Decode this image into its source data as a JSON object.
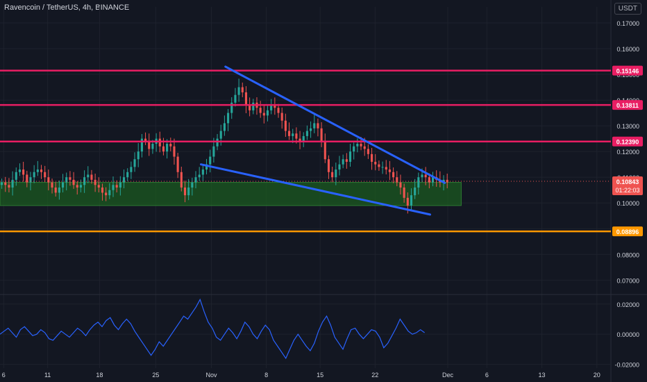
{
  "header": {
    "symbol_title": "Ravencoin / TetherUS, 4h, BINANCE"
  },
  "currency_button": "USDT",
  "colors": {
    "background": "#131722",
    "grid": "#1e222d",
    "axis_text": "#d1d4dc",
    "candle_up": "#26a69a",
    "candle_down": "#ef5350",
    "magenta_line": "#e91e63",
    "orange_line": "#ff9800",
    "trend_line": "#2962ff",
    "zone_fill": "#1b5e20",
    "oscillator": "#2962ff"
  },
  "chart_data": [
    {
      "type": "candlestick",
      "title": "Ravencoin / TetherUS, 4h, BINANCE",
      "y_axis_ticks": [
        "0.17000",
        "0.16000",
        "0.15000",
        "0.14000",
        "0.13000",
        "0.12000",
        "0.11000",
        "0.10000",
        "0.09000",
        "0.08000",
        "0.07000"
      ],
      "ylim": [
        0.0655,
        0.1735
      ],
      "x_axis_ticks": [
        "6",
        "11",
        "18",
        "25",
        "Nov",
        "8",
        "15",
        "22",
        "Dec",
        "6",
        "13",
        "20"
      ],
      "horizontal_levels": [
        {
          "value": 0.15146,
          "label": "0.15146",
          "color": "#e91e63"
        },
        {
          "value": 0.13811,
          "label": "0.13811",
          "color": "#e91e63"
        },
        {
          "value": 0.1239,
          "label": "0.12390",
          "color": "#e91e63"
        },
        {
          "value": 0.08896,
          "label": "0.08896",
          "color": "#ff9800"
        }
      ],
      "current_price": {
        "value": 0.10843,
        "label": "0.10843",
        "countdown": "01:22:03"
      },
      "support_zone": {
        "top": 0.108,
        "bottom": 0.099,
        "start_x": 0,
        "end_x": 0.755
      },
      "trend_lines": [
        {
          "name": "upper",
          "from": [
            0.369,
            0.153
          ],
          "to": [
            0.728,
            0.1078
          ]
        },
        {
          "name": "lower",
          "from": [
            0.329,
            0.115
          ],
          "to": [
            0.704,
            0.0955
          ]
        }
      ],
      "candles_close": [
        0.108,
        0.107,
        0.106,
        0.109,
        0.112,
        0.113,
        0.111,
        0.108,
        0.11,
        0.112,
        0.113,
        0.112,
        0.11,
        0.108,
        0.106,
        0.104,
        0.106,
        0.108,
        0.11,
        0.109,
        0.107,
        0.106,
        0.107,
        0.11,
        0.111,
        0.109,
        0.107,
        0.106,
        0.104,
        0.103,
        0.105,
        0.107,
        0.106,
        0.108,
        0.11,
        0.112,
        0.114,
        0.117,
        0.12,
        0.125,
        0.124,
        0.121,
        0.123,
        0.125,
        0.122,
        0.12,
        0.123,
        0.122,
        0.118,
        0.112,
        0.106,
        0.103,
        0.106,
        0.108,
        0.11,
        0.111,
        0.113,
        0.115,
        0.118,
        0.122,
        0.125,
        0.128,
        0.131,
        0.135,
        0.139,
        0.142,
        0.145,
        0.143,
        0.138,
        0.136,
        0.139,
        0.137,
        0.135,
        0.134,
        0.136,
        0.138,
        0.137,
        0.135,
        0.132,
        0.128,
        0.126,
        0.127,
        0.125,
        0.124,
        0.126,
        0.128,
        0.129,
        0.131,
        0.129,
        0.124,
        0.117,
        0.112,
        0.11,
        0.113,
        0.115,
        0.117,
        0.116,
        0.12,
        0.122,
        0.123,
        0.122,
        0.121,
        0.119,
        0.116,
        0.115,
        0.114,
        0.114,
        0.113,
        0.112,
        0.11,
        0.108,
        0.106,
        0.102,
        0.099,
        0.103,
        0.106,
        0.11,
        0.111,
        0.11,
        0.108,
        0.11,
        0.109,
        0.108,
        0.109,
        0.108
      ],
      "oscillator": {
        "y_axis_ticks": [
          "0.02000",
          "0.00000",
          "-0.02000"
        ],
        "ylim": [
          -0.0225,
          0.0245
        ],
        "values": [
          0.0,
          0.002,
          0.004,
          0.001,
          -0.002,
          0.003,
          0.005,
          0.002,
          -0.001,
          0.0,
          0.003,
          0.001,
          -0.003,
          -0.004,
          -0.001,
          0.002,
          0.0,
          -0.002,
          0.001,
          0.004,
          0.002,
          -0.001,
          0.003,
          0.006,
          0.008,
          0.005,
          0.009,
          0.011,
          0.006,
          0.003,
          0.007,
          0.01,
          0.007,
          0.002,
          -0.002,
          -0.006,
          -0.01,
          -0.014,
          -0.01,
          -0.005,
          -0.008,
          -0.004,
          0.0,
          0.004,
          0.008,
          0.012,
          0.01,
          0.014,
          0.018,
          0.023,
          0.015,
          0.008,
          0.004,
          -0.002,
          -0.004,
          0.0,
          0.004,
          0.001,
          -0.003,
          0.002,
          0.008,
          0.005,
          0.0,
          -0.003,
          0.002,
          0.006,
          0.003,
          -0.004,
          -0.008,
          -0.012,
          -0.016,
          -0.01,
          -0.004,
          0.0,
          -0.004,
          -0.008,
          -0.011,
          -0.006,
          0.002,
          0.008,
          0.012,
          0.006,
          -0.002,
          -0.006,
          -0.01,
          -0.003,
          0.003,
          0.004,
          0.0,
          -0.003,
          0.0,
          0.003,
          0.002,
          -0.002,
          -0.009,
          -0.006,
          -0.001,
          0.004,
          0.01,
          0.006,
          0.002,
          0.0,
          0.001,
          0.003,
          0.001
        ],
        "color": "#2962ff"
      }
    }
  ]
}
